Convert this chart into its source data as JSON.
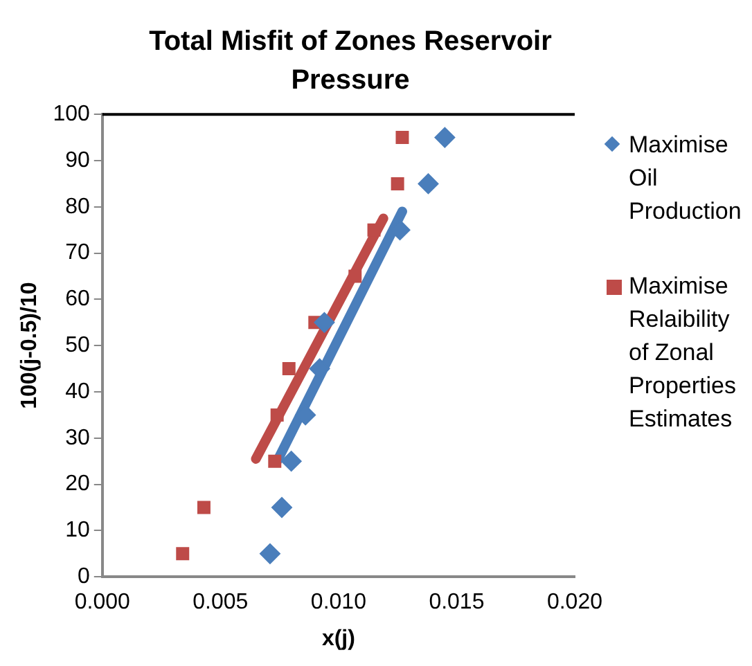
{
  "chart_data": {
    "type": "scatter",
    "title": "Total Misfit of Zones Reservoir Pressure",
    "xlabel": "x(j)",
    "ylabel": "100(j-0.5)/10",
    "xlim": [
      0,
      0.02
    ],
    "xticks": [
      {
        "value": 0,
        "label": "0.000"
      },
      {
        "value": 0.005,
        "label": "0.005"
      },
      {
        "value": 0.01,
        "label": "0.010"
      },
      {
        "value": 0.015,
        "label": "0.015"
      },
      {
        "value": 0.02,
        "label": "0.020"
      }
    ],
    "ylim": [
      0,
      100
    ],
    "yticks": [
      0,
      10,
      20,
      30,
      40,
      50,
      60,
      70,
      80,
      90,
      100
    ],
    "grid": false,
    "legend": "right",
    "series": [
      {
        "name": "Maximise Oil Production",
        "marker": "diamond",
        "color": "#4a7ebb",
        "x": [
          0.0071,
          0.0076,
          0.008,
          0.0086,
          0.0092,
          0.0094,
          null,
          0.0126,
          0.0138,
          0.0145
        ],
        "values": [
          5,
          15,
          25,
          35,
          45,
          55,
          null,
          75,
          85,
          95
        ]
      },
      {
        "name": "Maximise Relaibility of Zonal Properties Estimates",
        "marker": "square",
        "color": "#be4b48",
        "x": [
          0.0034,
          0.0043,
          0.0073,
          0.0074,
          0.0079,
          0.009,
          0.0107,
          0.0115,
          0.0125,
          0.0127
        ],
        "values": [
          5,
          15,
          25,
          35,
          45,
          55,
          65,
          75,
          85,
          95
        ]
      },
      {
        "type": "line",
        "marker": "none",
        "line_style": "solid",
        "color": "#4a7ebb",
        "x": [
          0.0074,
          0.0127
        ],
        "values": [
          25,
          79
        ]
      },
      {
        "type": "line",
        "marker": "none",
        "line_style": "solid",
        "color": "#be4b48",
        "x": [
          0.0065,
          0.0119
        ],
        "values": [
          25.5,
          77.5
        ]
      }
    ]
  }
}
